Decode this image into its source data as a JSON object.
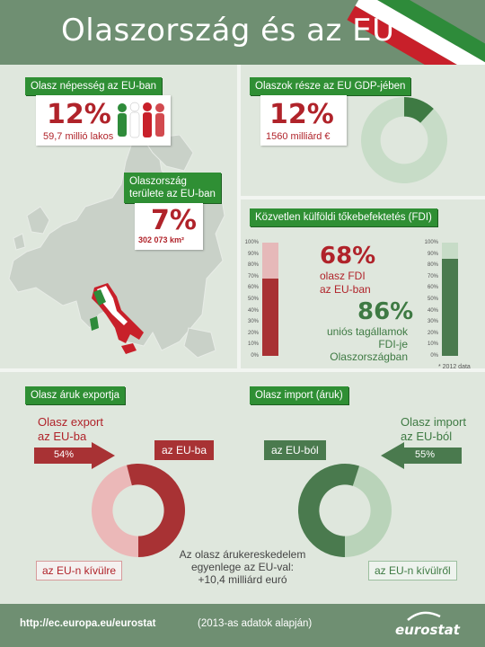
{
  "title": "Olaszország és az EU",
  "population": {
    "tag": "Olasz népesség az EU-ban",
    "percent": "12%",
    "sub": "59,7 millió lakos"
  },
  "gdp": {
    "tag": "Olaszok része az EU GDP-jében",
    "percent": "12%",
    "sub": "1560 milliárd €",
    "share": 0.12
  },
  "territory": {
    "tag_line1": "Olaszország",
    "tag_line2": "területe az EU-ban",
    "percent": "7%",
    "sub": "302 073 km²"
  },
  "fdi": {
    "tag": "Közvetlen külföldi tőkebefektetés (FDI)",
    "ticks": [
      "100%",
      "90%",
      "80%",
      "70%",
      "60%",
      "50%",
      "40%",
      "30%",
      "20%",
      "10%",
      "0%"
    ],
    "left_percent": "68%",
    "left_text_1": "olasz FDI",
    "left_text_2": "az EU-ban",
    "left_value": 0.68,
    "right_percent": "86%",
    "right_text_1": "uniós tagállamok",
    "right_text_2": "FDI-je",
    "right_text_3": "Olaszországban",
    "right_value": 0.86,
    "note": "* 2012 data"
  },
  "export": {
    "tag": "Olasz áruk exportja",
    "caption_1": "Olasz export",
    "caption_2": "az EU-ba",
    "arrow_value": "54%",
    "eu_label": "az EU-ba",
    "non_eu_label": "az EU-n kívülre",
    "eu_share": 0.54,
    "colors": {
      "eu": "#a83234",
      "non_eu": "#ebb8b8"
    }
  },
  "import": {
    "tag": "Olasz import (áruk)",
    "caption_1": "Olasz import",
    "caption_2": "az EU-ból",
    "arrow_value": "55%",
    "eu_label": "az EU-ból",
    "non_eu_label": "az EU-n kívülről",
    "eu_share": 0.55,
    "colors": {
      "eu": "#4a7a4e",
      "non_eu": "#b9d3b9"
    }
  },
  "balance": {
    "line1": "Az olasz árukereskedelem",
    "line2": "egyenlege az EU-val:",
    "line3": "+10,4 milliárd euró"
  },
  "footer": {
    "url": "http://ec.europa.eu/eurostat",
    "note": "(2013-as adatok alapján)",
    "brand": "eurostat"
  }
}
